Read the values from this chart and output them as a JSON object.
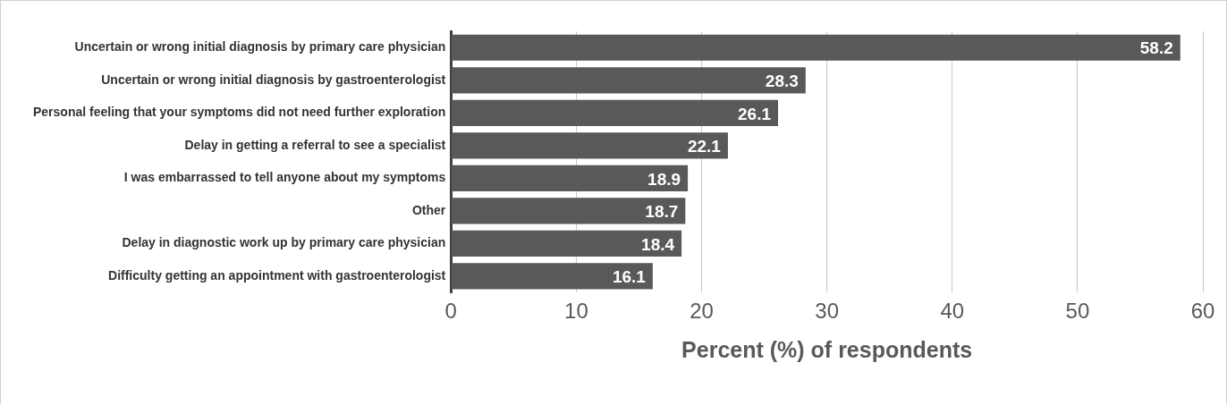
{
  "chart_data": {
    "type": "bar",
    "orientation": "horizontal",
    "xlabel": "Percent (%) of respondents",
    "categories": [
      "Uncertain or wrong initial diagnosis by primary care physician",
      "Uncertain or wrong initial diagnosis by gastroenterologist",
      "Personal feeling that your symptoms did not need further exploration",
      "Delay in getting a referral to see a specialist",
      "I was embarrassed to tell anyone about my symptoms",
      "Other",
      "Delay in diagnostic work up by primary care physician",
      "Difficulty getting an appointment with gastroenterologist"
    ],
    "values": [
      58.2,
      28.3,
      26.1,
      22.1,
      18.9,
      18.7,
      18.4,
      16.1
    ],
    "color": "#595959",
    "xlim": [
      0,
      60
    ],
    "xticks": [
      0,
      10,
      20,
      30,
      40,
      50,
      60
    ],
    "grid": "x",
    "data_labels": true,
    "legend": false
  }
}
